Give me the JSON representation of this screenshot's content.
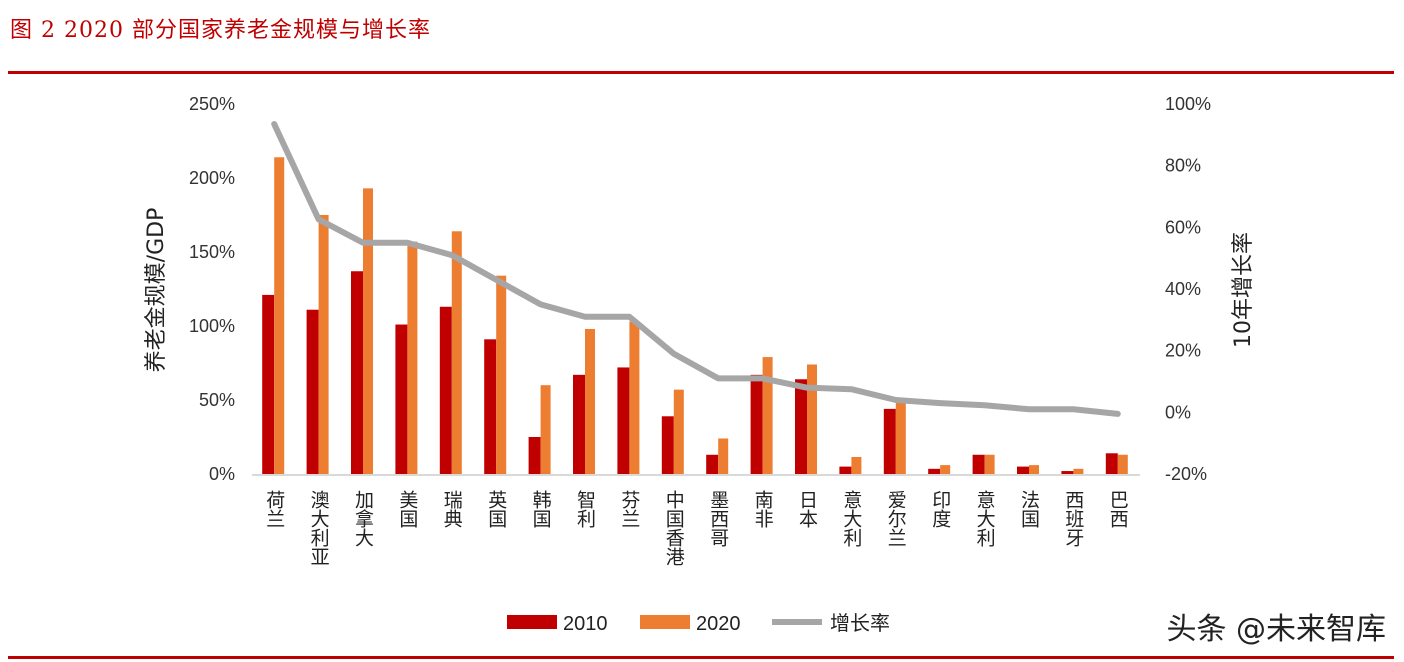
{
  "title": "图 2 2020 部分国家养老金规模与增长率",
  "watermark": "头条 @未来智库",
  "chart_data": {
    "type": "bar+line",
    "categories": [
      "荷兰",
      "澳大利亚",
      "加拿大",
      "美国",
      "瑞典",
      "英国",
      "韩国",
      "智利",
      "芬兰",
      "中国香港",
      "墨西哥",
      "南非",
      "日本",
      "意大利",
      "爱尔兰",
      "印度",
      "意大利",
      "法国",
      "西班牙",
      "巴西"
    ],
    "series": [
      {
        "name": "2010",
        "type": "bar",
        "axis": "left",
        "color": "#c00000",
        "values": [
          121,
          111,
          137,
          101,
          113,
          91,
          25,
          67,
          72,
          39,
          13,
          67,
          64,
          5,
          44,
          3.5,
          13,
          5,
          2,
          14
        ]
      },
      {
        "name": "2020",
        "type": "bar",
        "axis": "left",
        "color": "#ed7d31",
        "values": [
          214,
          175,
          193,
          157,
          164,
          134,
          60,
          98,
          103,
          57,
          24,
          79,
          74,
          11.5,
          49,
          6,
          13,
          6,
          3.5,
          13
        ]
      },
      {
        "name": "增长率",
        "type": "line",
        "axis": "right",
        "color": "#a6a6a6",
        "values": [
          93.5,
          62.6,
          55,
          55,
          51,
          43,
          35,
          31,
          31,
          19,
          11,
          11,
          8,
          7.5,
          4,
          3,
          2.3,
          1,
          1,
          -0.5
        ]
      }
    ],
    "ylabel": "养老金规模/GDP",
    "y2label": "10年增长率",
    "ylim": [
      0,
      250
    ],
    "yticks": [
      0,
      50,
      100,
      150,
      200,
      250
    ],
    "y2lim": [
      -20,
      100
    ],
    "y2ticks": [
      -20,
      0,
      20,
      40,
      60,
      80,
      100
    ],
    "legend": "bottom",
    "grid": false
  }
}
